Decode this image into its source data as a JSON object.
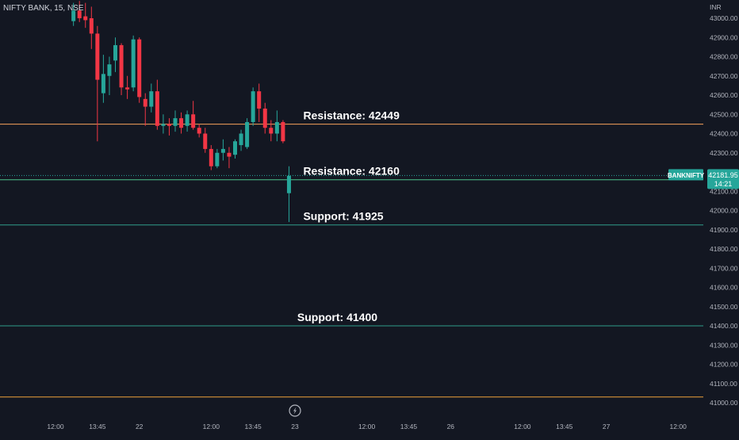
{
  "header": {
    "symbol_label": "NIFTY BANK, 15, NSE"
  },
  "price_scale": {
    "currency": "INR"
  },
  "colors": {
    "background": "#131722",
    "up": "#26a69a",
    "down": "#f23645",
    "resistance_high": "#f7a25b",
    "resistance_low": "#4cc38a",
    "support": "#2f9e8a",
    "bottom_line": "#f0a23b",
    "text": "#d1d4dc",
    "axis_text": "#b2b5be"
  },
  "chart_data": {
    "type": "candlestick",
    "ylim": [
      40970,
      43040
    ],
    "y_ticks": [
      43000,
      42900,
      42800,
      42700,
      42600,
      42500,
      42400,
      42300,
      42100,
      42000,
      41900,
      41800,
      41700,
      41600,
      41500,
      41400,
      41300,
      41200,
      41100,
      41000
    ],
    "y_tick_labels": [
      "43000.00",
      "42900.00",
      "42800.00",
      "42700.00",
      "42600.00",
      "42500.00",
      "42400.00",
      "42300.00",
      "42100.00",
      "42000.00",
      "41900.00",
      "41800.00",
      "41700.00",
      "41600.00",
      "41500.00",
      "41400.00",
      "41300.00",
      "41200.00",
      "41100.00",
      "41000.00"
    ],
    "x_ticks": [
      {
        "label": "12:00",
        "bar": 0
      },
      {
        "label": "13:45",
        "bar": 7
      },
      {
        "label": "22",
        "bar": 14
      },
      {
        "label": "12:00",
        "bar": 26
      },
      {
        "label": "13:45",
        "bar": 33
      },
      {
        "label": "23",
        "bar": 40
      },
      {
        "label": "12:00",
        "bar": 52
      },
      {
        "label": "13:45",
        "bar": 59
      },
      {
        "label": "26",
        "bar": 66
      },
      {
        "label": "12:00",
        "bar": 78
      },
      {
        "label": "13:45",
        "bar": 85
      },
      {
        "label": "27",
        "bar": 92
      },
      {
        "label": "12:00",
        "bar": 104
      }
    ],
    "candles": [
      {
        "bar": 3,
        "o": 42985,
        "h": 43080,
        "l": 42960,
        "c": 43040
      },
      {
        "bar": 4,
        "o": 43040,
        "h": 43090,
        "l": 42980,
        "c": 43000
      },
      {
        "bar": 5,
        "o": 43010,
        "h": 43080,
        "l": 42950,
        "c": 42990
      },
      {
        "bar": 6,
        "o": 43000,
        "h": 43060,
        "l": 42840,
        "c": 42920
      },
      {
        "bar": 7,
        "o": 42920,
        "h": 42960,
        "l": 42360,
        "c": 42680
      },
      {
        "bar": 8,
        "o": 42610,
        "h": 42810,
        "l": 42560,
        "c": 42710
      },
      {
        "bar": 9,
        "o": 42700,
        "h": 42800,
        "l": 42600,
        "c": 42760
      },
      {
        "bar": 10,
        "o": 42780,
        "h": 42900,
        "l": 42720,
        "c": 42860
      },
      {
        "bar": 11,
        "o": 42860,
        "h": 42870,
        "l": 42600,
        "c": 42640
      },
      {
        "bar": 12,
        "o": 42640,
        "h": 42700,
        "l": 42580,
        "c": 42630
      },
      {
        "bar": 13,
        "o": 42640,
        "h": 42910,
        "l": 42620,
        "c": 42890
      },
      {
        "bar": 14,
        "o": 42890,
        "h": 42900,
        "l": 42560,
        "c": 42590
      },
      {
        "bar": 15,
        "o": 42580,
        "h": 42610,
        "l": 42440,
        "c": 42540
      },
      {
        "bar": 16,
        "o": 42540,
        "h": 42660,
        "l": 42510,
        "c": 42620
      },
      {
        "bar": 17,
        "o": 42620,
        "h": 42680,
        "l": 42420,
        "c": 42440
      },
      {
        "bar": 18,
        "o": 42440,
        "h": 42500,
        "l": 42400,
        "c": 42450
      },
      {
        "bar": 19,
        "o": 42450,
        "h": 42480,
        "l": 42390,
        "c": 42440
      },
      {
        "bar": 20,
        "o": 42440,
        "h": 42520,
        "l": 42410,
        "c": 42480
      },
      {
        "bar": 21,
        "o": 42480,
        "h": 42510,
        "l": 42400,
        "c": 42430
      },
      {
        "bar": 22,
        "o": 42440,
        "h": 42520,
        "l": 42410,
        "c": 42500
      },
      {
        "bar": 23,
        "o": 42500,
        "h": 42570,
        "l": 42420,
        "c": 42430
      },
      {
        "bar": 24,
        "o": 42430,
        "h": 42450,
        "l": 42380,
        "c": 42400
      },
      {
        "bar": 25,
        "o": 42400,
        "h": 42430,
        "l": 42300,
        "c": 42320
      },
      {
        "bar": 26,
        "o": 42320,
        "h": 42340,
        "l": 42210,
        "c": 42230
      },
      {
        "bar": 27,
        "o": 42230,
        "h": 42320,
        "l": 42220,
        "c": 42300
      },
      {
        "bar": 28,
        "o": 42300,
        "h": 42370,
        "l": 42260,
        "c": 42320
      },
      {
        "bar": 29,
        "o": 42300,
        "h": 42330,
        "l": 42220,
        "c": 42280
      },
      {
        "bar": 30,
        "o": 42290,
        "h": 42370,
        "l": 42270,
        "c": 42360
      },
      {
        "bar": 31,
        "o": 42340,
        "h": 42420,
        "l": 42310,
        "c": 42400
      },
      {
        "bar": 32,
        "o": 42330,
        "h": 42480,
        "l": 42320,
        "c": 42460
      },
      {
        "bar": 33,
        "o": 42460,
        "h": 42640,
        "l": 42440,
        "c": 42620
      },
      {
        "bar": 34,
        "o": 42620,
        "h": 42660,
        "l": 42460,
        "c": 42530
      },
      {
        "bar": 35,
        "o": 42530,
        "h": 42560,
        "l": 42400,
        "c": 42430
      },
      {
        "bar": 36,
        "o": 42430,
        "h": 42470,
        "l": 42360,
        "c": 42400
      },
      {
        "bar": 37,
        "o": 42400,
        "h": 42520,
        "l": 42360,
        "c": 42460
      },
      {
        "bar": 38,
        "o": 42460,
        "h": 42470,
        "l": 42350,
        "c": 42360
      },
      {
        "bar": 39,
        "o": 42090,
        "h": 42230,
        "l": 41940,
        "c": 42180
      }
    ],
    "levels": [
      {
        "name": "Resistance: 42449",
        "value": 42449,
        "color": "#f7a25b",
        "label_bar": 39,
        "label_side": "above"
      },
      {
        "name": "Resistance: 42160",
        "value": 42160,
        "color": "#4cc38a",
        "label_bar": 39,
        "label_side": "above"
      },
      {
        "name": "Support: 41925",
        "value": 41925,
        "color": "#2f9e8a",
        "label_bar": 39,
        "label_side": "above"
      },
      {
        "name": "Support: 41400",
        "value": 41400,
        "color": "#2f9e8a",
        "label_bar": 38,
        "label_side": "above"
      },
      {
        "name": "",
        "value": 41030,
        "color": "#f0a23b",
        "label_bar": null,
        "label_side": "none"
      }
    ],
    "last_price": {
      "symbol": "BANKNIFTY",
      "value": "42181.95",
      "countdown": "14:21",
      "price": 42181.95
    },
    "event_marker": {
      "bar": 40,
      "icon": "lightning-icon"
    }
  }
}
